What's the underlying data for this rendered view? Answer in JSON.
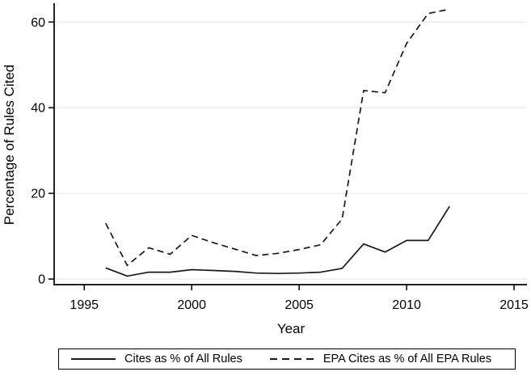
{
  "chart_data": {
    "type": "line",
    "title": "",
    "xlabel": "Year",
    "ylabel": "Percentage of Rules Cited",
    "x": [
      1996,
      1997,
      1998,
      1999,
      2000,
      2001,
      2002,
      2003,
      2004,
      2005,
      2006,
      2007,
      2008,
      2009,
      2010,
      2011,
      2012
    ],
    "series": [
      {
        "name": "Cites as % of All Rules",
        "line_style": "solid",
        "values": [
          2.6,
          0.7,
          1.6,
          1.6,
          2.2,
          2.0,
          1.8,
          1.4,
          1.3,
          1.4,
          1.6,
          2.5,
          8.2,
          6.3,
          9.0,
          9.0,
          17.0
        ]
      },
      {
        "name": "EPA Cites as % of All EPA Rules",
        "line_style": "dashed",
        "values": [
          13.0,
          3.2,
          7.3,
          5.8,
          10.2,
          8.5,
          7.0,
          5.5,
          6.0,
          6.9,
          8.0,
          14.0,
          44.0,
          43.5,
          55.0,
          62.0,
          63.0
        ]
      }
    ],
    "xticks": [
      1995,
      2000,
      2005,
      2010,
      2015
    ],
    "yticks": [
      0,
      20,
      40,
      60
    ],
    "xlim": [
      1993.6,
      2015.6
    ],
    "ylim": [
      -1.3,
      64.2
    ],
    "grid": "horizontal",
    "legend_position": "bottom-box",
    "line_color": "#1a1a1a",
    "grid_color": "#eeeeee",
    "axis_color": "#000000"
  }
}
